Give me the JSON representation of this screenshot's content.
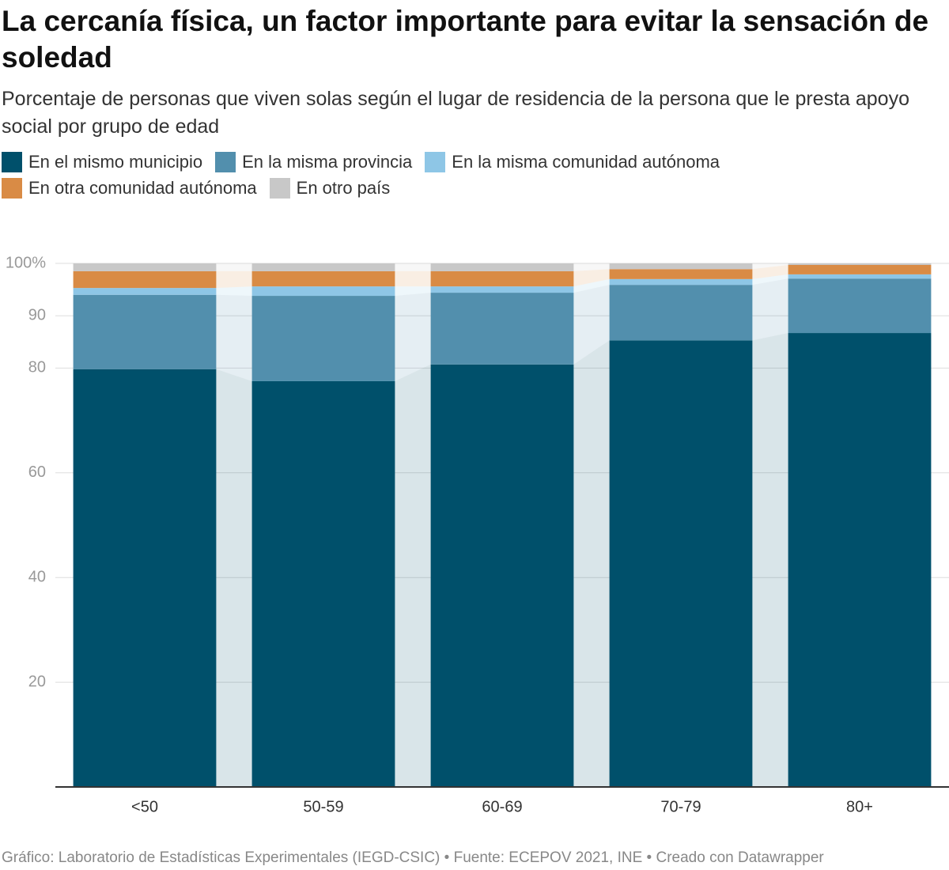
{
  "chart_data": {
    "type": "stacked-bar",
    "title": "La cercanía física, un factor importante para evitar la sensación de soledad",
    "subtitle": "Porcentaje de personas que viven solas según el lugar de residencia de la persona que le presta apoyo social por grupo de edad",
    "categories": [
      "<50",
      "50-59",
      "60-69",
      "70-79",
      "80+"
    ],
    "series": [
      {
        "name": "En el mismo municipio",
        "color": "#00506b",
        "values": [
          79.8,
          77.5,
          80.7,
          85.3,
          86.7
        ]
      },
      {
        "name": "En la misma provincia",
        "color": "#528fad",
        "values": [
          14.2,
          16.3,
          13.7,
          10.6,
          10.4
        ]
      },
      {
        "name": "En la misma comunidad autónoma",
        "color": "#8ec6e6",
        "values": [
          1.3,
          1.8,
          1.2,
          1.1,
          0.8
        ]
      },
      {
        "name": "En otra comunidad autónoma",
        "color": "#d98b45",
        "values": [
          3.2,
          2.9,
          2.9,
          1.9,
          1.8
        ]
      },
      {
        "name": "En otro país",
        "color": "#c8c8c8",
        "values": [
          1.5,
          1.5,
          1.5,
          1.1,
          0.3
        ]
      }
    ],
    "ylim": [
      0,
      100
    ],
    "yticks": [
      20,
      40,
      60,
      80,
      90,
      {
        "value": 100,
        "label": "100%"
      }
    ],
    "grid": true,
    "footer": "Gráfico: Laboratorio de Estadísticas Experimentales (IEGD-CSIC) • Fuente: ECEPOV 2021, INE • Creado con Datawrapper"
  }
}
